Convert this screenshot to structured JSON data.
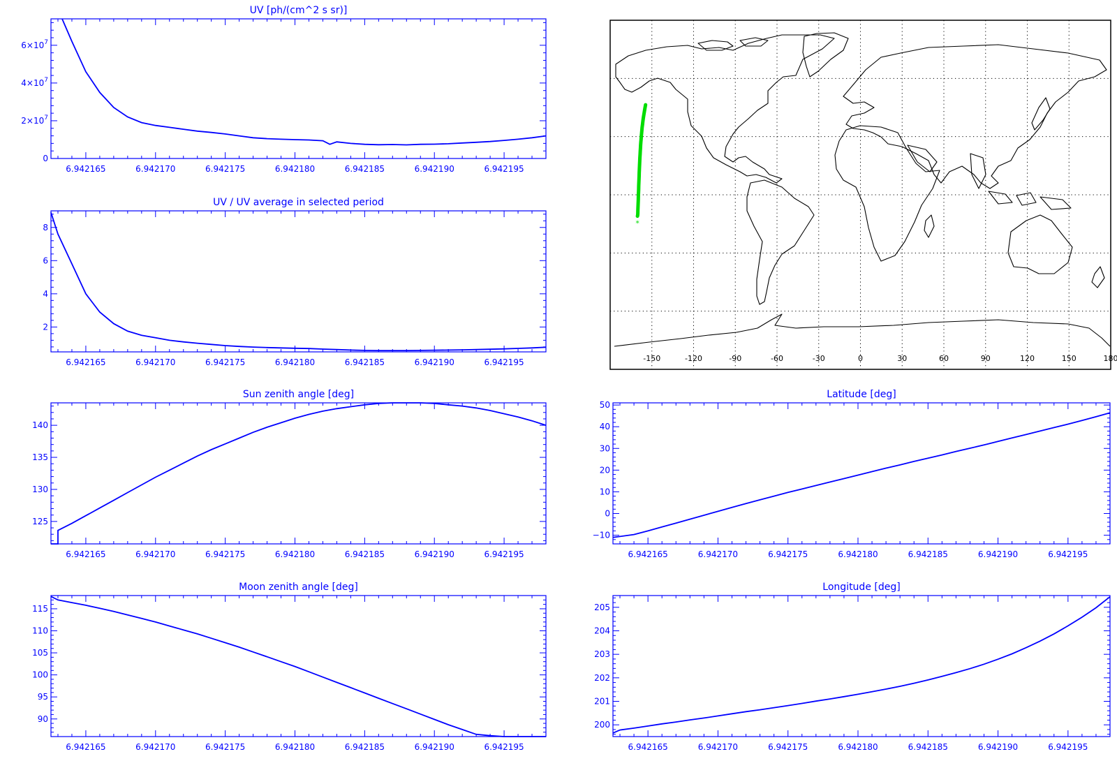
{
  "colors": {
    "axis": "#0000ff",
    "trace": "#0000ff",
    "map_line": "#000000",
    "track": "#00dd00",
    "background": "#ffffff"
  },
  "x_tick_labels": [
    "6.942165",
    "6.942170",
    "6.942175",
    "6.942180",
    "6.942185",
    "6.942190",
    "6.942195"
  ],
  "map": {
    "lon_tick_labels": [
      "-150",
      "-120",
      "-90",
      "-60",
      "-30",
      "0",
      "30",
      "60",
      "90",
      "120",
      "150",
      "180"
    ],
    "track_marker": "*"
  },
  "chart_data": [
    {
      "id": "uv",
      "type": "line",
      "title": "UV [ph/(cm^2 s sr)]",
      "xlabel": "",
      "ylabel": "",
      "xlim": [
        6.9421625,
        6.942198
      ],
      "ylim": [
        0,
        74000000
      ],
      "x_ticks": [
        6.942165,
        6.94217,
        6.942175,
        6.94218,
        6.942185,
        6.94219,
        6.942195
      ],
      "y_ticks": [
        {
          "value": 0,
          "mantissa": "0",
          "exp": ""
        },
        {
          "value": 20000000,
          "mantissa": "2×10",
          "exp": "7"
        },
        {
          "value": 40000000,
          "mantissa": "4×10",
          "exp": "7"
        },
        {
          "value": 60000000,
          "mantissa": "6×10",
          "exp": "7"
        }
      ],
      "series": [
        {
          "x": [
            6.9421633,
            6.942164,
            6.942165,
            6.942166,
            6.942167,
            6.942168,
            6.942169,
            6.94217,
            6.942171,
            6.942172,
            6.942173,
            6.942174,
            6.942175,
            6.942176,
            6.942177,
            6.942178,
            6.942179,
            6.94218,
            6.942181,
            6.942182,
            6.9421825,
            6.942183,
            6.942184,
            6.942185,
            6.942186,
            6.942187,
            6.942188,
            6.942189,
            6.94219,
            6.942191,
            6.942192,
            6.942193,
            6.942194,
            6.942195,
            6.942196,
            6.942197,
            6.942198
          ],
          "y": [
            74000000,
            62000000,
            46000000,
            35000000,
            27000000,
            22000000,
            19000000,
            17500000,
            16500000,
            15500000,
            14500000,
            13800000,
            13000000,
            12000000,
            11000000,
            10500000,
            10200000,
            10000000,
            9800000,
            9400000,
            7500000,
            8800000,
            8000000,
            7500000,
            7300000,
            7400000,
            7200000,
            7500000,
            7600000,
            7800000,
            8200000,
            8600000,
            9000000,
            9600000,
            10200000,
            11000000,
            12000000
          ]
        }
      ]
    },
    {
      "id": "uv_ratio",
      "type": "line",
      "title": "UV / UV average in selected period",
      "xlabel": "",
      "ylabel": "",
      "xlim": [
        6.9421625,
        6.942198
      ],
      "ylim": [
        0.5,
        9.0
      ],
      "x_ticks": [
        6.942165,
        6.94217,
        6.942175,
        6.94218,
        6.942185,
        6.94219,
        6.942195
      ],
      "y_ticks": [
        {
          "value": 2,
          "mantissa": "2",
          "exp": ""
        },
        {
          "value": 4,
          "mantissa": "4",
          "exp": ""
        },
        {
          "value": 6,
          "mantissa": "6",
          "exp": ""
        },
        {
          "value": 8,
          "mantissa": "8",
          "exp": ""
        }
      ],
      "series": [
        {
          "x": [
            6.9421625,
            6.942163,
            6.942164,
            6.942165,
            6.942166,
            6.942167,
            6.942168,
            6.942169,
            6.94217,
            6.942171,
            6.942172,
            6.942173,
            6.942174,
            6.942175,
            6.942176,
            6.942177,
            6.942178,
            6.942179,
            6.94218,
            6.942181,
            6.942182,
            6.942183,
            6.942184,
            6.942185,
            6.942186,
            6.942187,
            6.942188,
            6.942189,
            6.94219,
            6.942191,
            6.942192,
            6.942193,
            6.942194,
            6.942195,
            6.942196,
            6.942197,
            6.942198
          ],
          "y": [
            8.9,
            7.6,
            5.8,
            4.0,
            2.9,
            2.2,
            1.75,
            1.5,
            1.35,
            1.2,
            1.1,
            1.02,
            0.95,
            0.88,
            0.83,
            0.79,
            0.76,
            0.74,
            0.72,
            0.7,
            0.67,
            0.64,
            0.61,
            0.59,
            0.58,
            0.58,
            0.58,
            0.59,
            0.6,
            0.61,
            0.62,
            0.64,
            0.66,
            0.68,
            0.71,
            0.74,
            0.78
          ]
        }
      ]
    },
    {
      "id": "sun_zenith",
      "type": "line",
      "title": "Sun zenith angle [deg]",
      "xlabel": "",
      "ylabel": "",
      "xlim": [
        6.9421625,
        6.942198
      ],
      "ylim": [
        121.5,
        143.5
      ],
      "x_ticks": [
        6.942165,
        6.94217,
        6.942175,
        6.94218,
        6.942185,
        6.94219,
        6.942195
      ],
      "y_ticks": [
        {
          "value": 125,
          "mantissa": "125",
          "exp": ""
        },
        {
          "value": 130,
          "mantissa": "130",
          "exp": ""
        },
        {
          "value": 135,
          "mantissa": "135",
          "exp": ""
        },
        {
          "value": 140,
          "mantissa": "140",
          "exp": ""
        }
      ],
      "series": [
        {
          "x": [
            6.9421625,
            6.942163,
            6.942163,
            6.942164,
            6.942165,
            6.942166,
            6.942167,
            6.942168,
            6.942169,
            6.94217,
            6.942171,
            6.942172,
            6.942173,
            6.942174,
            6.942175,
            6.942176,
            6.942177,
            6.942178,
            6.942179,
            6.94218,
            6.942181,
            6.942182,
            6.942183,
            6.942184,
            6.942185,
            6.942186,
            6.942187,
            6.942188,
            6.942189,
            6.94219,
            6.942191,
            6.942192,
            6.942193,
            6.942194,
            6.942195,
            6.942196,
            6.942197,
            6.942198
          ],
          "y": [
            121.5,
            121.5,
            123.6,
            124.7,
            125.9,
            127.1,
            128.3,
            129.5,
            130.7,
            131.9,
            133.0,
            134.1,
            135.2,
            136.2,
            137.1,
            138.0,
            138.9,
            139.7,
            140.4,
            141.1,
            141.7,
            142.2,
            142.6,
            142.9,
            143.2,
            143.4,
            143.5,
            143.5,
            143.5,
            143.4,
            143.2,
            143.0,
            142.7,
            142.3,
            141.8,
            141.3,
            140.7,
            140.0
          ]
        }
      ]
    },
    {
      "id": "moon_zenith",
      "type": "line",
      "title": "Moon zenith angle [deg]",
      "xlabel": "",
      "ylabel": "",
      "xlim": [
        6.9421625,
        6.942198
      ],
      "ylim": [
        86,
        118
      ],
      "x_ticks": [
        6.942165,
        6.94217,
        6.942175,
        6.94218,
        6.942185,
        6.94219,
        6.942195
      ],
      "y_ticks": [
        {
          "value": 90,
          "mantissa": "90",
          "exp": ""
        },
        {
          "value": 95,
          "mantissa": "95",
          "exp": ""
        },
        {
          "value": 100,
          "mantissa": "100",
          "exp": ""
        },
        {
          "value": 105,
          "mantissa": "105",
          "exp": ""
        },
        {
          "value": 110,
          "mantissa": "110",
          "exp": ""
        },
        {
          "value": 115,
          "mantissa": "115",
          "exp": ""
        }
      ],
      "series": [
        {
          "x": [
            6.9421625,
            6.942163,
            6.942164,
            6.942165,
            6.942166,
            6.942167,
            6.942168,
            6.942169,
            6.94217,
            6.942171,
            6.942172,
            6.942173,
            6.942174,
            6.942175,
            6.942176,
            6.942177,
            6.942178,
            6.942179,
            6.94218,
            6.942181,
            6.942182,
            6.942183,
            6.942184,
            6.942185,
            6.942186,
            6.942187,
            6.942188,
            6.942189,
            6.94219,
            6.942191,
            6.942192,
            6.942193,
            6.942194,
            6.942195,
            6.942196,
            6.942197,
            6.942198
          ],
          "y": [
            117.8,
            117.0,
            116.4,
            115.8,
            115.1,
            114.4,
            113.6,
            112.8,
            112.0,
            111.1,
            110.2,
            109.3,
            108.3,
            107.3,
            106.3,
            105.2,
            104.1,
            103.0,
            101.9,
            100.7,
            99.5,
            98.3,
            97.1,
            95.9,
            94.7,
            93.5,
            92.3,
            91.1,
            89.9,
            88.7,
            87.6,
            86.5,
            86.2,
            86.0,
            86.0,
            86.0,
            86.0
          ]
        }
      ]
    },
    {
      "id": "latitude",
      "type": "line",
      "title": "Latitude [deg]",
      "xlabel": "",
      "ylabel": "",
      "xlim": [
        6.9421625,
        6.942198
      ],
      "ylim": [
        -14,
        51
      ],
      "x_ticks": [
        6.942165,
        6.94217,
        6.942175,
        6.94218,
        6.942185,
        6.94219,
        6.942195
      ],
      "y_ticks": [
        {
          "value": -10,
          "mantissa": "−10",
          "exp": ""
        },
        {
          "value": 0,
          "mantissa": "0",
          "exp": ""
        },
        {
          "value": 10,
          "mantissa": "10",
          "exp": ""
        },
        {
          "value": 20,
          "mantissa": "20",
          "exp": ""
        },
        {
          "value": 30,
          "mantissa": "30",
          "exp": ""
        },
        {
          "value": 40,
          "mantissa": "40",
          "exp": ""
        },
        {
          "value": 50,
          "mantissa": "50",
          "exp": ""
        }
      ],
      "series": [
        {
          "x": [
            6.9421625,
            6.942163,
            6.942164,
            6.942165,
            6.942166,
            6.942167,
            6.942168,
            6.942169,
            6.94217,
            6.942171,
            6.942172,
            6.942173,
            6.942174,
            6.942175,
            6.942176,
            6.942177,
            6.942178,
            6.942179,
            6.94218,
            6.942181,
            6.942182,
            6.942183,
            6.942184,
            6.942185,
            6.942186,
            6.942187,
            6.942188,
            6.942189,
            6.94219,
            6.942191,
            6.942192,
            6.942193,
            6.942194,
            6.942195,
            6.942196,
            6.942197,
            6.942198
          ],
          "y": [
            -11.0,
            -10.6,
            -9.7,
            -8.0,
            -6.2,
            -4.4,
            -2.6,
            -0.8,
            1.0,
            2.8,
            4.6,
            6.3,
            8.0,
            9.7,
            11.3,
            12.9,
            14.5,
            16.1,
            17.7,
            19.3,
            20.9,
            22.4,
            24.0,
            25.5,
            27.0,
            28.6,
            30.1,
            31.6,
            33.2,
            34.8,
            36.4,
            38.0,
            39.6,
            41.2,
            42.9,
            44.6,
            46.4
          ]
        }
      ]
    },
    {
      "id": "longitude",
      "type": "line",
      "title": "Longitude [deg]",
      "xlabel": "",
      "ylabel": "",
      "xlim": [
        6.9421625,
        6.942198
      ],
      "ylim": [
        199.5,
        205.5
      ],
      "x_ticks": [
        6.942165,
        6.94217,
        6.942175,
        6.94218,
        6.942185,
        6.94219,
        6.942195
      ],
      "y_ticks": [
        {
          "value": 200,
          "mantissa": "200",
          "exp": ""
        },
        {
          "value": 201,
          "mantissa": "201",
          "exp": ""
        },
        {
          "value": 202,
          "mantissa": "202",
          "exp": ""
        },
        {
          "value": 203,
          "mantissa": "203",
          "exp": ""
        },
        {
          "value": 204,
          "mantissa": "204",
          "exp": ""
        },
        {
          "value": 205,
          "mantissa": "205",
          "exp": ""
        }
      ],
      "series": [
        {
          "x": [
            6.9421625,
            6.942163,
            6.942164,
            6.942165,
            6.942166,
            6.942167,
            6.942168,
            6.942169,
            6.94217,
            6.942171,
            6.942172,
            6.942173,
            6.942174,
            6.942175,
            6.942176,
            6.942177,
            6.942178,
            6.942179,
            6.94218,
            6.942181,
            6.942182,
            6.942183,
            6.942184,
            6.942185,
            6.942186,
            6.942187,
            6.942188,
            6.942189,
            6.94219,
            6.942191,
            6.942192,
            6.942193,
            6.942194,
            6.942195,
            6.942196,
            6.942197,
            6.942198
          ],
          "y": [
            199.65,
            199.78,
            199.86,
            199.95,
            200.04,
            200.12,
            200.21,
            200.29,
            200.38,
            200.47,
            200.56,
            200.64,
            200.73,
            200.82,
            200.91,
            201.01,
            201.1,
            201.2,
            201.3,
            201.41,
            201.52,
            201.64,
            201.77,
            201.91,
            202.06,
            202.22,
            202.39,
            202.58,
            202.79,
            203.02,
            203.28,
            203.56,
            203.87,
            204.21,
            204.58,
            204.98,
            205.45
          ]
        }
      ]
    }
  ]
}
